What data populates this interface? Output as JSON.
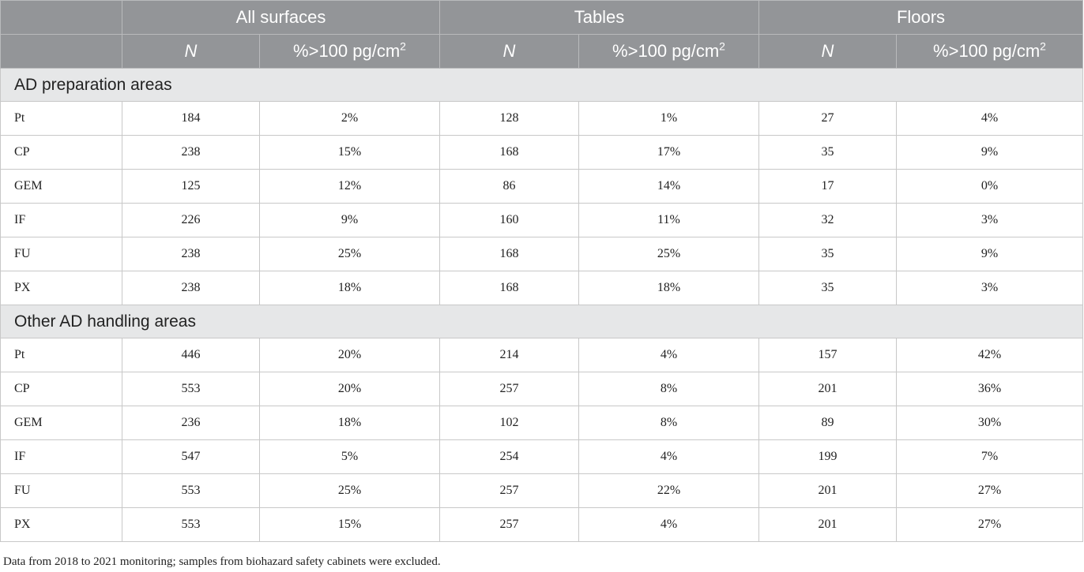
{
  "header": {
    "groups": [
      "All surfaces",
      "Tables",
      "Floors"
    ],
    "n_label": "N",
    "pct_label": "%>100 pg/cm",
    "pct_sup": "2"
  },
  "sections": [
    {
      "title": "AD preparation areas",
      "rows": [
        {
          "label": "Pt",
          "values": [
            "184",
            "2%",
            "128",
            "1%",
            "27",
            "4%"
          ]
        },
        {
          "label": "CP",
          "values": [
            "238",
            "15%",
            "168",
            "17%",
            "35",
            "9%"
          ]
        },
        {
          "label": "GEM",
          "values": [
            "125",
            "12%",
            "86",
            "14%",
            "17",
            "0%"
          ]
        },
        {
          "label": "IF",
          "values": [
            "226",
            "9%",
            "160",
            "11%",
            "32",
            "3%"
          ]
        },
        {
          "label": "FU",
          "values": [
            "238",
            "25%",
            "168",
            "25%",
            "35",
            "9%"
          ]
        },
        {
          "label": "PX",
          "values": [
            "238",
            "18%",
            "168",
            "18%",
            "35",
            "3%"
          ]
        }
      ]
    },
    {
      "title": "Other AD handling areas",
      "rows": [
        {
          "label": "Pt",
          "values": [
            "446",
            "20%",
            "214",
            "4%",
            "157",
            "42%"
          ]
        },
        {
          "label": "CP",
          "values": [
            "553",
            "20%",
            "257",
            "8%",
            "201",
            "36%"
          ]
        },
        {
          "label": "GEM",
          "values": [
            "236",
            "18%",
            "102",
            "8%",
            "89",
            "30%"
          ]
        },
        {
          "label": "IF",
          "values": [
            "547",
            "5%",
            "254",
            "4%",
            "199",
            "7%"
          ]
        },
        {
          "label": "FU",
          "values": [
            "553",
            "25%",
            "257",
            "22%",
            "201",
            "27%"
          ]
        },
        {
          "label": "PX",
          "values": [
            "553",
            "15%",
            "257",
            "4%",
            "201",
            "27%"
          ]
        }
      ]
    }
  ],
  "footnote": "Data from 2018 to 2021 monitoring; samples from biohazard safety cabinets were excluded."
}
